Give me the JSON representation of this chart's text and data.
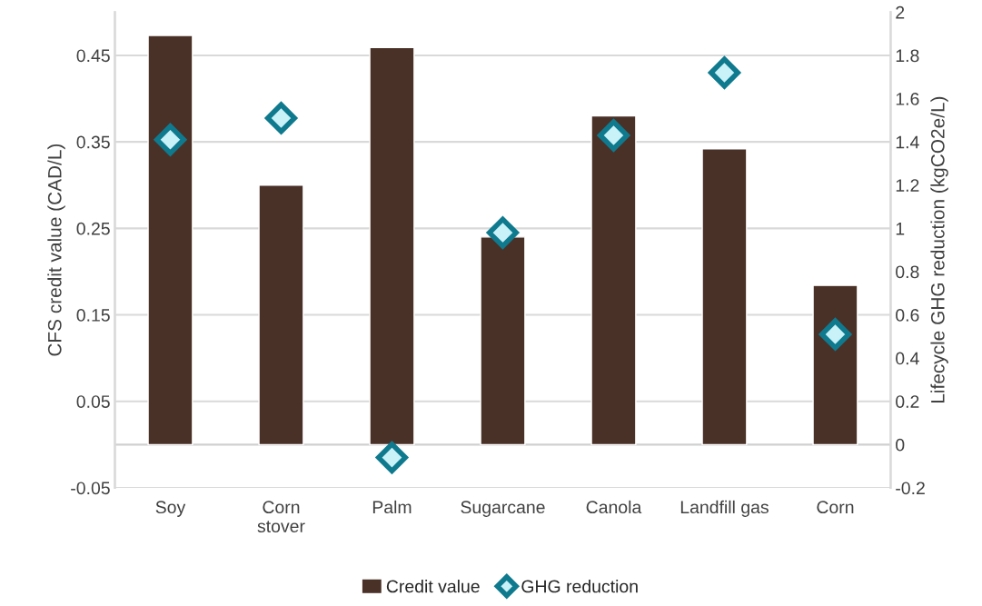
{
  "chart_data": {
    "type": "bar",
    "categories": [
      "Soy",
      "Corn\nstover",
      "Palm",
      "Sugarcane",
      "Canola",
      "Landfill gas",
      "Corn"
    ],
    "ylabel": "CFS credit value (CAD/L)",
    "y2label": "Lifecycle GHG reduction (kgCO2e/L)",
    "series": [
      {
        "name": "Credit value",
        "color": "#4a3128",
        "values": [
          0.473,
          0.3,
          0.459,
          0.24,
          0.38,
          0.342,
          0.184
        ]
      },
      {
        "name": "GHG reduction",
        "type": "scatter",
        "axis": "y2",
        "marker": "diamond",
        "color": "#0f7a8e",
        "values": [
          1.41,
          1.51,
          -0.06,
          0.98,
          1.43,
          1.72,
          0.51
        ]
      }
    ],
    "ylim": [
      -0.05,
      0.5
    ],
    "yticks": [
      -0.05,
      0.05,
      0.15,
      0.25,
      0.35,
      0.45
    ],
    "y2lim": [
      -0.2,
      2
    ],
    "y2ticks": [
      -0.2,
      0,
      0.2,
      0.4,
      0.6,
      0.8,
      1,
      1.2,
      1.4,
      1.6,
      1.8,
      2
    ],
    "ref_lines": [
      {
        "axis": "y",
        "value": 0,
        "color": "#d0d0d0"
      }
    ],
    "grid": "y",
    "legend": "bottom"
  }
}
